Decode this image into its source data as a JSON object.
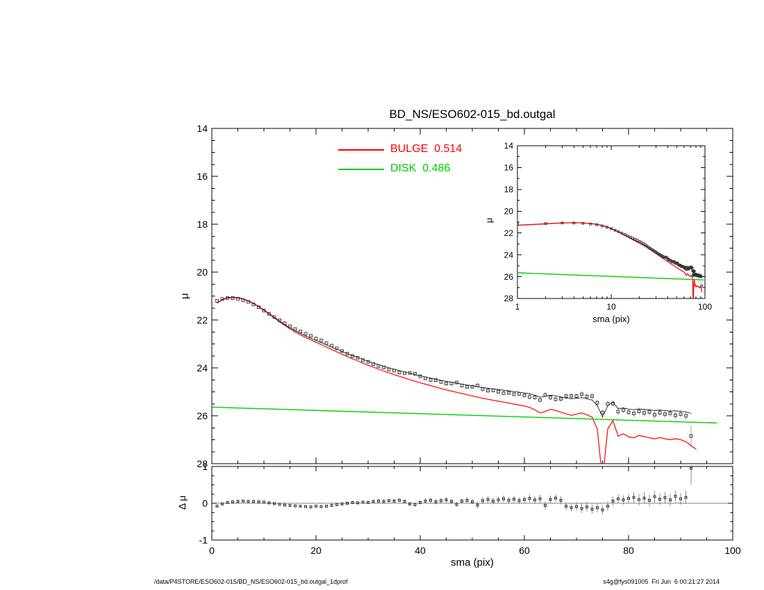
{
  "title": "BD_NS/ESO602-015_bd.outgal",
  "legend": {
    "bulge": {
      "label": "BULGE  0.514",
      "color": "#ff0000"
    },
    "disk": {
      "label": "DISK  0.486",
      "color": "#00cc00"
    }
  },
  "footer": {
    "left": "/data/P4STORE/ESO602-015/BD_NS/ESO602-015_bd.outgal_1dprof",
    "right": "s4g@fys091005  Fri Jun  6 00:21:27 2014"
  },
  "colors": {
    "frame": "#000000",
    "observed": "#333333",
    "total": "#000000",
    "errbar": "#999999"
  },
  "chart_data": [
    {
      "id": "main",
      "type": "line+scatter",
      "title": "BD_NS/ESO602-015_bd.outgal",
      "xlabel": "sma (pix)",
      "ylabel": "μ",
      "xscale": "linear",
      "xlim": [
        0,
        100
      ],
      "y_top": 14,
      "y_bottom": 28,
      "xticks": [
        0,
        20,
        40,
        60,
        80,
        100
      ],
      "x_labels_visible": false,
      "yticks": [
        14,
        16,
        18,
        20,
        22,
        24,
        26,
        28
      ],
      "series": [
        {
          "name": "observed_profile",
          "marker": "open-square",
          "color": "#333333",
          "x_start": 1,
          "x_step": 1,
          "derived": "total_model + residual.dmu (same x grid, 92 points)"
        },
        {
          "name": "total_model",
          "style": "line",
          "color": "#000000",
          "derived": "-2.5*log10(10^(-0.4*BULGE)+10^(-0.4*DISK))"
        },
        {
          "name": "BULGE",
          "fraction": 0.514,
          "style": "line",
          "color": "#ff0000",
          "x_start": 1,
          "x_step": 1,
          "mu": [
            21.3,
            21.16,
            21.08,
            21.06,
            21.08,
            21.13,
            21.21,
            21.32,
            21.45,
            21.6,
            21.76,
            21.92,
            22.08,
            22.23,
            22.37,
            22.5,
            22.62,
            22.73,
            22.83,
            22.93,
            23.03,
            23.13,
            23.23,
            23.33,
            23.43,
            23.53,
            23.62,
            23.71,
            23.8,
            23.89,
            23.97,
            24.05,
            24.13,
            24.21,
            24.28,
            24.35,
            24.42,
            24.49,
            24.56,
            24.62,
            24.68,
            24.74,
            24.8,
            24.86,
            24.92,
            24.97,
            25.02,
            25.07,
            25.12,
            25.17,
            25.22,
            25.27,
            25.31,
            25.35,
            25.39,
            25.43,
            25.47,
            25.51,
            25.55,
            25.59,
            25.65,
            25.75,
            25.88,
            25.82,
            25.73,
            25.78,
            25.85,
            25.92,
            25.98,
            25.93,
            25.88,
            25.96,
            26.06,
            26.55,
            28.7,
            26.55,
            26.2,
            26.85,
            26.75,
            26.88,
            26.92,
            26.82,
            26.87,
            26.92,
            26.96,
            26.91,
            26.96,
            27.0,
            26.96,
            27.0,
            27.08,
            27.25,
            27.4
          ]
        },
        {
          "name": "DISK",
          "fraction": 0.486,
          "style": "line",
          "color": "#00cc00",
          "interp": "linear",
          "x": [
            0,
            97
          ],
          "mu": [
            25.64,
            26.3
          ]
        }
      ]
    },
    {
      "id": "inset",
      "type": "line+scatter",
      "xlabel": "sma (pix)",
      "ylabel": "μ",
      "xscale": "log",
      "xlim": [
        1,
        100
      ],
      "y_top": 14,
      "y_bottom": 28,
      "xticks": [
        1,
        10,
        100
      ],
      "x_labels_visible": true,
      "yticks": [
        14,
        16,
        18,
        20,
        22,
        24,
        26,
        28
      ],
      "series_note": "same four series as main panel, replotted with logarithmic x axis"
    },
    {
      "id": "residual",
      "type": "scatter",
      "xlabel": "sma (pix)",
      "ylabel": "Δ μ",
      "xscale": "linear",
      "xlim": [
        0,
        100
      ],
      "y_top": 1,
      "y_bottom": -1,
      "xticks": [
        0,
        20,
        40,
        60,
        80,
        100
      ],
      "x_labels_visible": true,
      "yticks": [
        1,
        0,
        -1
      ],
      "zero_line": true,
      "series": [
        {
          "name": "residual",
          "marker": "open-square",
          "color": "#222222",
          "x_start": 1,
          "x_step": 1,
          "dmu": [
            -0.08,
            -0.02,
            0.02,
            0.04,
            0.05,
            0.06,
            0.05,
            0.05,
            0.04,
            0.03,
            0.01,
            -0.01,
            -0.03,
            -0.05,
            -0.06,
            -0.07,
            -0.08,
            -0.09,
            -0.1,
            -0.08,
            -0.09,
            -0.08,
            -0.06,
            -0.04,
            -0.02,
            0.0,
            0.02,
            0.01,
            0.03,
            0.02,
            0.05,
            0.06,
            0.05,
            0.07,
            0.06,
            0.08,
            0.05,
            -0.02,
            -0.04,
            0.02,
            0.06,
            0.08,
            0.04,
            0.07,
            0.09,
            0.05,
            -0.03,
            0.06,
            0.08,
            0.04,
            -0.05,
            0.07,
            0.1,
            0.06,
            0.09,
            0.12,
            0.08,
            0.11,
            0.07,
            0.1,
            0.13,
            0.09,
            0.12,
            -0.06,
            0.1,
            0.14,
            0.08,
            -0.08,
            -0.12,
            -0.09,
            -0.14,
            -0.1,
            -0.16,
            -0.12,
            -0.18,
            -0.08,
            0.06,
            0.12,
            0.09,
            0.13,
            0.16,
            0.1,
            0.14,
            0.08,
            0.18,
            0.11,
            0.15,
            0.09,
            0.19,
            0.12,
            0.16,
            0.95
          ],
          "err": [
            0.02,
            0.02,
            0.02,
            0.02,
            0.02,
            0.02,
            0.02,
            0.02,
            0.02,
            0.02,
            0.025,
            0.025,
            0.025,
            0.025,
            0.025,
            0.025,
            0.025,
            0.025,
            0.025,
            0.025,
            0.03,
            0.03,
            0.03,
            0.03,
            0.03,
            0.03,
            0.03,
            0.03,
            0.03,
            0.03,
            0.05,
            0.05,
            0.05,
            0.05,
            0.05,
            0.05,
            0.05,
            0.05,
            0.05,
            0.05,
            0.07,
            0.07,
            0.07,
            0.07,
            0.07,
            0.07,
            0.07,
            0.07,
            0.07,
            0.07,
            0.09,
            0.09,
            0.09,
            0.09,
            0.09,
            0.09,
            0.09,
            0.09,
            0.09,
            0.09,
            0.11,
            0.11,
            0.11,
            0.11,
            0.11,
            0.11,
            0.11,
            0.11,
            0.11,
            0.11,
            0.13,
            0.13,
            0.13,
            0.13,
            0.13,
            0.13,
            0.13,
            0.13,
            0.13,
            0.13,
            0.16,
            0.16,
            0.16,
            0.16,
            0.16,
            0.16,
            0.16,
            0.16,
            0.16,
            0.16,
            0.18,
            0.45
          ]
        }
      ]
    }
  ]
}
